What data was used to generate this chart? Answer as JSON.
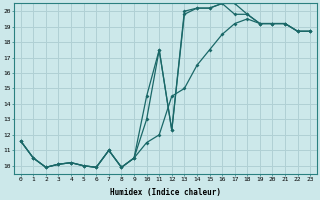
{
  "xlabel": "Humidex (Indice chaleur)",
  "bg_color": "#cce8ea",
  "grid_color": "#b0d0d4",
  "line_color": "#1a6868",
  "xlim": [
    -0.5,
    23.5
  ],
  "ylim": [
    9.5,
    20.5
  ],
  "xticks": [
    0,
    1,
    2,
    3,
    4,
    5,
    6,
    7,
    8,
    9,
    10,
    11,
    12,
    13,
    14,
    15,
    16,
    17,
    18,
    19,
    20,
    21,
    22,
    23
  ],
  "yticks": [
    10,
    11,
    12,
    13,
    14,
    15,
    16,
    17,
    18,
    19,
    20
  ],
  "curve1_x": [
    0,
    1,
    2,
    3,
    4,
    5,
    6,
    7,
    8,
    9,
    10,
    11,
    12,
    13,
    14,
    15,
    16,
    17,
    18,
    19,
    20,
    21,
    22,
    23
  ],
  "curve1_y": [
    11.6,
    10.5,
    9.9,
    10.1,
    10.2,
    10.0,
    9.9,
    11.0,
    9.9,
    10.5,
    13.0,
    17.5,
    12.3,
    19.8,
    20.2,
    20.2,
    20.5,
    19.8,
    19.8,
    19.2,
    19.2,
    19.2,
    18.7,
    18.7
  ],
  "curve2_x": [
    0,
    1,
    2,
    3,
    4,
    5,
    6,
    7,
    8,
    9,
    10,
    11,
    12,
    13,
    14,
    15,
    16,
    17,
    18,
    19,
    20,
    21,
    22,
    23
  ],
  "curve2_y": [
    11.6,
    10.5,
    9.9,
    10.1,
    10.2,
    10.0,
    9.9,
    11.0,
    9.9,
    10.5,
    11.5,
    12.0,
    14.5,
    15.0,
    16.5,
    17.5,
    18.5,
    19.2,
    19.5,
    19.2,
    19.2,
    19.2,
    18.7,
    18.7
  ],
  "curve3_x": [
    0,
    1,
    2,
    3,
    4,
    5,
    6,
    7,
    8,
    9,
    10,
    11,
    12,
    13,
    14,
    15,
    16,
    17,
    18,
    19,
    20,
    21,
    22,
    23
  ],
  "curve3_y": [
    11.6,
    10.5,
    9.9,
    10.1,
    10.2,
    10.0,
    9.9,
    11.0,
    9.9,
    10.5,
    14.5,
    17.5,
    12.3,
    20.0,
    20.2,
    20.2,
    20.5,
    20.5,
    19.8,
    19.2,
    19.2,
    19.2,
    18.7,
    18.7
  ]
}
